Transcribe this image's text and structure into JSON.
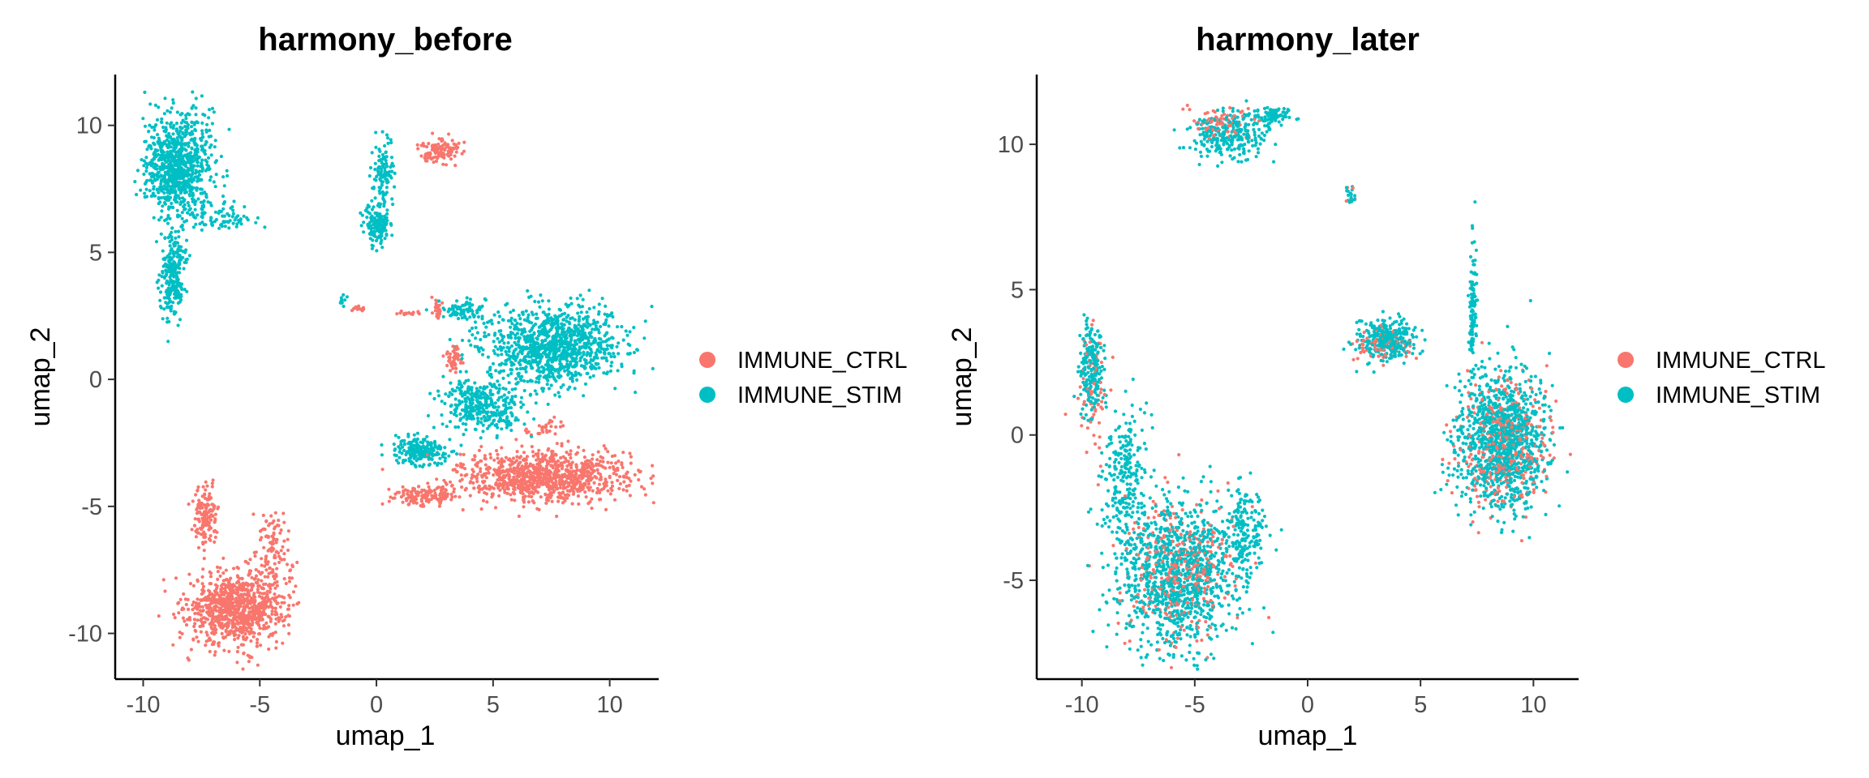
{
  "colors": {
    "ctrl": "#F8766D",
    "stim": "#00BFC4"
  },
  "chart_data": [
    {
      "type": "scatter",
      "title": "harmony_before",
      "xlabel": "umap_1",
      "ylabel": "umap_2",
      "xlim": [
        -11.2,
        12.1
      ],
      "ylim": [
        -11.8,
        12.0
      ],
      "x_ticks": [
        -10,
        -5,
        0,
        5,
        10
      ],
      "x_tick_labels": [
        "-10",
        "-5",
        "0",
        "5",
        "10"
      ],
      "y_ticks": [
        -10,
        -5,
        0,
        5,
        10
      ],
      "y_tick_labels": [
        "-10",
        "-5",
        "0",
        "5",
        "10"
      ],
      "grid": false,
      "legend_position": "right",
      "series": [
        {
          "name": "IMMUNE_CTRL",
          "color": "#F8766D",
          "clusters": [
            {
              "cx": -6.0,
              "cy": -9.0,
              "rx": 1.9,
              "ry": 1.3,
              "n": 900
            },
            {
              "cx": -7.3,
              "cy": -5.4,
              "rx": 0.5,
              "ry": 1.0,
              "n": 150
            },
            {
              "cx": -4.4,
              "cy": -6.8,
              "rx": 0.7,
              "ry": 1.6,
              "n": 110
            },
            {
              "cx": 7.2,
              "cy": -3.8,
              "rx": 3.4,
              "ry": 0.9,
              "n": 950
            },
            {
              "cx": 2.1,
              "cy": -4.6,
              "rx": 1.2,
              "ry": 0.4,
              "n": 140
            },
            {
              "cx": 2.7,
              "cy": 9.0,
              "rx": 0.8,
              "ry": 0.4,
              "n": 120
            },
            {
              "cx": 3.3,
              "cy": 0.8,
              "rx": 0.3,
              "ry": 0.4,
              "n": 50
            },
            {
              "cx": 2.6,
              "cy": 2.8,
              "rx": 0.2,
              "ry": 0.4,
              "n": 25
            },
            {
              "cx": -0.8,
              "cy": 2.8,
              "rx": 0.3,
              "ry": 0.1,
              "n": 12
            },
            {
              "cx": 1.4,
              "cy": 2.6,
              "rx": 0.5,
              "ry": 0.1,
              "n": 15
            },
            {
              "cx": 7.3,
              "cy": -1.9,
              "rx": 0.7,
              "ry": 0.3,
              "n": 30
            }
          ]
        },
        {
          "name": "IMMUNE_STIM",
          "color": "#00BFC4",
          "clusters": [
            {
              "cx": -8.5,
              "cy": 8.4,
              "rx": 1.3,
              "ry": 1.8,
              "n": 850
            },
            {
              "cx": -8.7,
              "cy": 4.1,
              "rx": 0.5,
              "ry": 1.5,
              "n": 260
            },
            {
              "cx": -6.7,
              "cy": 6.4,
              "rx": 1.4,
              "ry": 0.5,
              "n": 80
            },
            {
              "cx": 0.1,
              "cy": 6.1,
              "rx": 0.6,
              "ry": 0.8,
              "n": 150
            },
            {
              "cx": 0.3,
              "cy": 8.1,
              "rx": 0.4,
              "ry": 1.1,
              "n": 100
            },
            {
              "cx": 7.6,
              "cy": 1.3,
              "rx": 2.6,
              "ry": 1.4,
              "n": 1050
            },
            {
              "cx": 4.6,
              "cy": -1.0,
              "rx": 1.6,
              "ry": 1.0,
              "n": 350
            },
            {
              "cx": 1.9,
              "cy": -2.8,
              "rx": 1.1,
              "ry": 0.5,
              "n": 220
            },
            {
              "cx": 3.6,
              "cy": 2.7,
              "rx": 0.9,
              "ry": 0.4,
              "n": 80
            },
            {
              "cx": -1.4,
              "cy": 3.1,
              "rx": 0.2,
              "ry": 0.2,
              "n": 12
            }
          ]
        }
      ]
    },
    {
      "type": "scatter",
      "title": "harmony_later",
      "xlabel": "umap_1",
      "ylabel": "umap_2",
      "xlim": [
        -12.0,
        12.0
      ],
      "ylim": [
        -8.4,
        12.4
      ],
      "x_ticks": [
        -10,
        -5,
        0,
        5,
        10
      ],
      "x_tick_labels": [
        "-10",
        "-5",
        "0",
        "5",
        "10"
      ],
      "y_ticks": [
        -5,
        0,
        5,
        10
      ],
      "y_tick_labels": [
        "-5",
        "0",
        "5",
        "10"
      ],
      "grid": false,
      "legend_position": "right",
      "series": [
        {
          "name": "IMMUNE_CTRL",
          "color": "#F8766D",
          "clusters": [
            {
              "cx": 8.7,
              "cy": -0.3,
              "rx": 1.7,
              "ry": 2.0,
              "n": 380
            },
            {
              "cx": -5.6,
              "cy": -4.6,
              "rx": 2.2,
              "ry": 2.2,
              "n": 330
            },
            {
              "cx": -9.4,
              "cy": 1.4,
              "rx": 0.7,
              "ry": 2.0,
              "n": 70
            },
            {
              "cx": -3.9,
              "cy": 10.7,
              "rx": 1.2,
              "ry": 0.5,
              "n": 70
            },
            {
              "cx": 3.3,
              "cy": 3.1,
              "rx": 1.1,
              "ry": 0.5,
              "n": 90
            },
            {
              "cx": 1.9,
              "cy": 8.3,
              "rx": 0.2,
              "ry": 0.3,
              "n": 6
            }
          ]
        },
        {
          "name": "IMMUNE_STIM",
          "color": "#00BFC4",
          "clusters": [
            {
              "cx": 8.6,
              "cy": -0.2,
              "rx": 1.8,
              "ry": 2.1,
              "n": 1100
            },
            {
              "cx": 7.3,
              "cy": 4.6,
              "rx": 0.15,
              "ry": 2.0,
              "n": 110
            },
            {
              "cx": 3.5,
              "cy": 3.3,
              "rx": 1.1,
              "ry": 0.6,
              "n": 300
            },
            {
              "cx": -5.8,
              "cy": -4.8,
              "rx": 2.4,
              "ry": 2.4,
              "n": 1050
            },
            {
              "cx": -9.6,
              "cy": 2.3,
              "rx": 0.5,
              "ry": 1.5,
              "n": 200
            },
            {
              "cx": -8.1,
              "cy": -1.6,
              "rx": 0.9,
              "ry": 2.4,
              "n": 260
            },
            {
              "cx": -2.8,
              "cy": -3.3,
              "rx": 0.8,
              "ry": 1.6,
              "n": 180
            },
            {
              "cx": -3.5,
              "cy": 10.3,
              "rx": 1.5,
              "ry": 0.7,
              "n": 260
            },
            {
              "cx": -1.5,
              "cy": 11.0,
              "rx": 0.9,
              "ry": 0.25,
              "n": 80
            },
            {
              "cx": 1.9,
              "cy": 8.2,
              "rx": 0.2,
              "ry": 0.3,
              "n": 18
            }
          ]
        }
      ]
    }
  ]
}
